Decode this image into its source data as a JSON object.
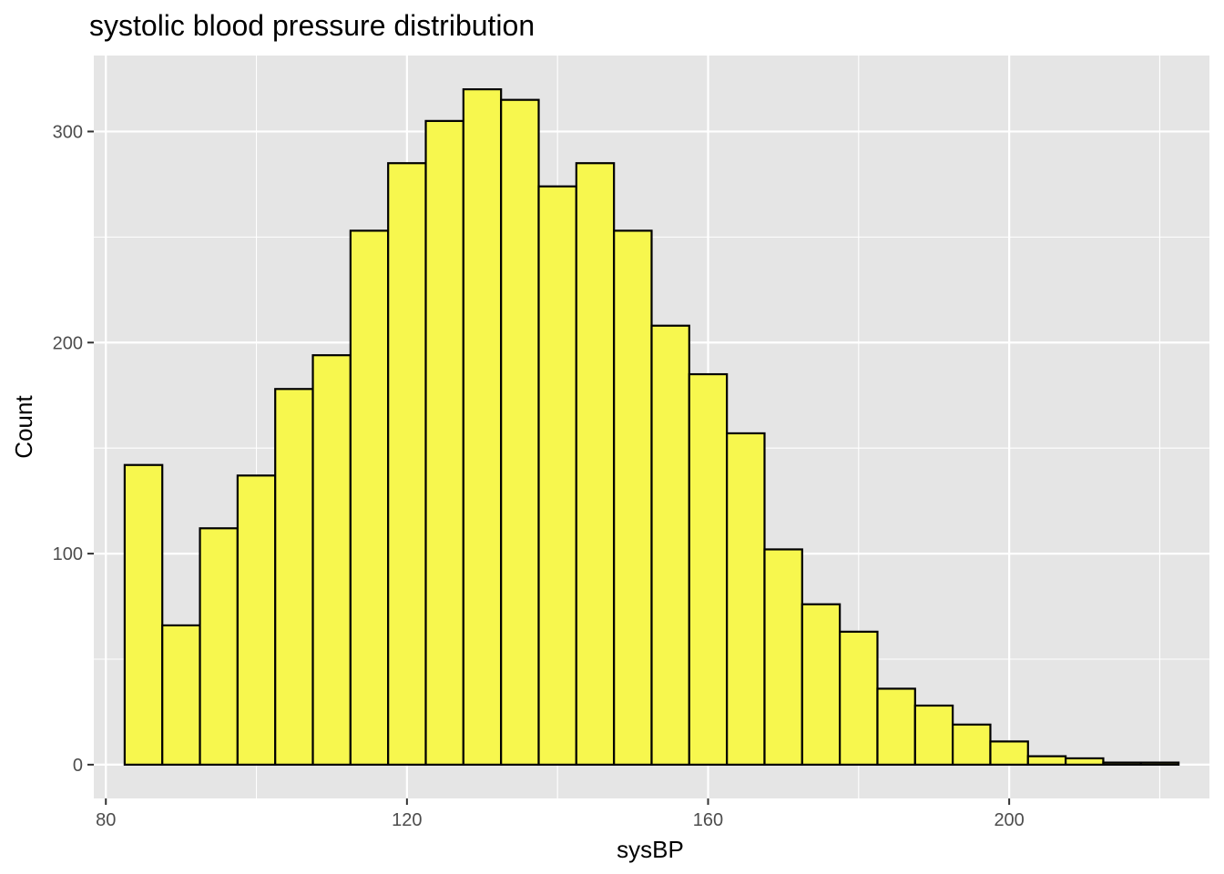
{
  "chart_data": {
    "type": "bar",
    "title": "systolic blood pressure distribution",
    "xlabel": "sysBP",
    "ylabel": "Count",
    "xlim": [
      78.4,
      226.6
    ],
    "ylim": [
      -16,
      336
    ],
    "x_ticks": [
      80,
      120,
      160,
      200
    ],
    "y_ticks": [
      0,
      100,
      200,
      300
    ],
    "x_tick_labels": [
      "80",
      "120",
      "160",
      "200"
    ],
    "y_tick_labels": [
      "0",
      "100",
      "200",
      "300"
    ],
    "grid": true,
    "bin_width": 5,
    "bin_edges": [
      82.5,
      87.5,
      92.5,
      97.5,
      102.5,
      107.5,
      112.5,
      117.5,
      122.5,
      127.5,
      132.5,
      137.5,
      142.5,
      147.5,
      152.5,
      157.5,
      162.5,
      167.5,
      172.5,
      177.5,
      182.5,
      187.5,
      192.5,
      197.5,
      202.5,
      207.5,
      212.5,
      217.5,
      222.5
    ],
    "values": [
      142,
      66,
      112,
      137,
      178,
      194,
      253,
      285,
      305,
      320,
      315,
      274,
      285,
      253,
      208,
      185,
      157,
      102,
      76,
      63,
      36,
      28,
      19,
      11,
      4,
      3,
      1,
      1
    ],
    "colors": {
      "bar_fill": "#F7F74E",
      "bar_stroke": "#000000",
      "panel_background": "#E5E5E5",
      "grid": "#FFFFFF",
      "tick_label": "#4D4D4D"
    }
  }
}
